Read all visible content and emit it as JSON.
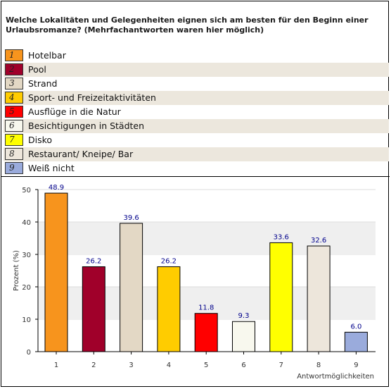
{
  "question": "Welche Lokalitäten und Gelegenheiten eignen sich am besten für den Beginn einer Urlaubsromanze? (Mehrfachantworten waren hier möglich)",
  "legend": [
    {
      "number": "1",
      "label": "Hotelbar",
      "color": "#f7941d"
    },
    {
      "number": "2",
      "label": "Pool",
      "color": "#a0002a"
    },
    {
      "number": "3",
      "label": "Strand",
      "color": "#e3d8c5"
    },
    {
      "number": "4",
      "label": "Sport- und Freizeitaktivitäten",
      "color": "#ffcc00"
    },
    {
      "number": "5",
      "label": "Ausflüge in die Natur",
      "color": "#ff0000"
    },
    {
      "number": "6",
      "label": "Besichtigungen in Städten",
      "color": "#f8f8ee"
    },
    {
      "number": "7",
      "label": "Disko",
      "color": "#ffff00"
    },
    {
      "number": "8",
      "label": "Restaurant/ Kneipe/ Bar",
      "color": "#ede6db"
    },
    {
      "number": "9",
      "label": "Weiß nicht",
      "color": "#9aabdc"
    }
  ],
  "chart_data": {
    "type": "bar",
    "categories": [
      "1",
      "2",
      "3",
      "4",
      "5",
      "6",
      "7",
      "8",
      "9"
    ],
    "values": [
      48.9,
      26.2,
      39.6,
      26.2,
      11.8,
      9.3,
      33.6,
      32.6,
      6.0
    ],
    "value_labels": [
      "48.9",
      "26.2",
      "39.6",
      "26.2",
      "11.8",
      "9.3",
      "33.6",
      "32.6",
      "6.0"
    ],
    "colors": [
      "#f7941d",
      "#a0002a",
      "#e3d8c5",
      "#ffcc00",
      "#ff0000",
      "#f8f8ee",
      "#ffff00",
      "#ede6db",
      "#9aabdc"
    ],
    "ylabel": "Prozent (%)",
    "xlabel": "Antwortmöglichkeiten",
    "ylim": [
      0,
      50
    ],
    "yticks": [
      "0",
      "10",
      "20",
      "30",
      "40",
      "50"
    ],
    "grid": "alternating horizontal bands",
    "label_color": "#00008b"
  }
}
